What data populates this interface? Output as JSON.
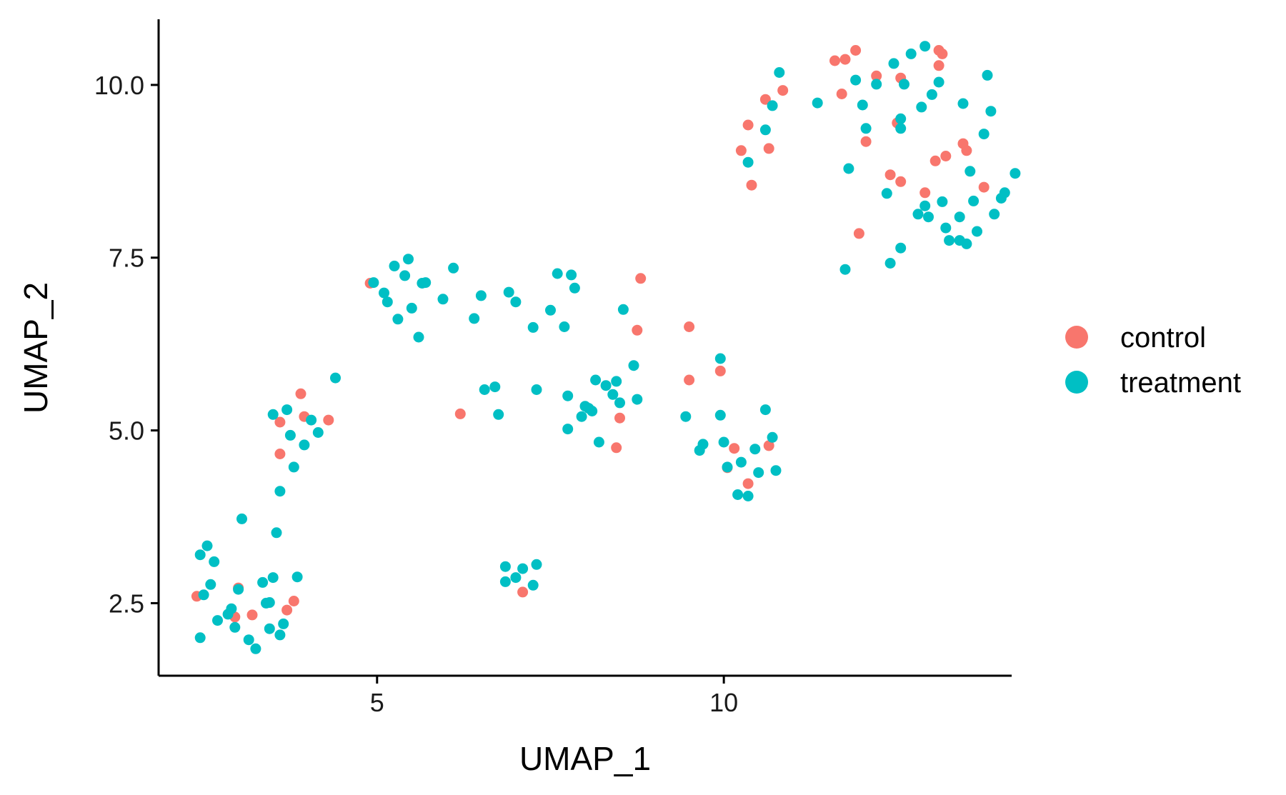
{
  "chart_data": {
    "type": "scatter",
    "title": "",
    "xlabel": "UMAP_1",
    "ylabel": "UMAP_2",
    "xlim": [
      1.85,
      14.15
    ],
    "ylim": [
      1.45,
      10.95
    ],
    "xticks": [
      5,
      10
    ],
    "xtick_labels": [
      "5",
      "10"
    ],
    "yticks": [
      2.5,
      5.0,
      7.5,
      10.0
    ],
    "ytick_labels": [
      "2.5",
      "5.0",
      "7.5",
      "10.0"
    ],
    "grid": false,
    "legend_position": "right",
    "series": [
      {
        "name": "control",
        "color": "#F8766D",
        "points": [
          [
            2.4,
            2.6
          ],
          [
            3.0,
            2.72
          ],
          [
            2.95,
            2.3
          ],
          [
            3.2,
            2.33
          ],
          [
            3.7,
            2.4
          ],
          [
            3.8,
            2.53
          ],
          [
            3.6,
            5.12
          ],
          [
            3.6,
            4.66
          ],
          [
            3.9,
            5.53
          ],
          [
            3.95,
            5.2
          ],
          [
            4.3,
            5.15
          ],
          [
            4.9,
            7.13
          ],
          [
            6.2,
            5.24
          ],
          [
            7.1,
            2.66
          ],
          [
            8.5,
            5.18
          ],
          [
            8.45,
            4.75
          ],
          [
            8.75,
            6.45
          ],
          [
            8.8,
            7.2
          ],
          [
            9.5,
            6.5
          ],
          [
            9.5,
            5.73
          ],
          [
            9.95,
            5.86
          ],
          [
            10.05,
            4.46
          ],
          [
            10.15,
            4.74
          ],
          [
            10.35,
            4.23
          ],
          [
            10.65,
            4.78
          ],
          [
            10.25,
            9.05
          ],
          [
            10.35,
            9.42
          ],
          [
            10.4,
            8.55
          ],
          [
            10.6,
            9.79
          ],
          [
            10.65,
            9.08
          ],
          [
            10.85,
            9.92
          ],
          [
            11.6,
            10.35
          ],
          [
            11.7,
            9.87
          ],
          [
            11.75,
            10.37
          ],
          [
            11.9,
            10.5
          ],
          [
            12.05,
            9.18
          ],
          [
            11.95,
            7.85
          ],
          [
            12.2,
            10.13
          ],
          [
            12.4,
            8.7
          ],
          [
            12.5,
            9.45
          ],
          [
            12.55,
            8.6
          ],
          [
            12.55,
            10.1
          ],
          [
            12.9,
            8.44
          ],
          [
            13.05,
            8.9
          ],
          [
            13.1,
            10.5
          ],
          [
            13.15,
            10.45
          ],
          [
            13.1,
            10.28
          ],
          [
            13.2,
            8.97
          ],
          [
            13.45,
            9.15
          ],
          [
            13.5,
            9.05
          ],
          [
            13.75,
            8.52
          ]
        ]
      },
      {
        "name": "treatment",
        "color": "#00BFC4",
        "points": [
          [
            2.45,
            3.2
          ],
          [
            2.5,
            2.62
          ],
          [
            2.55,
            3.33
          ],
          [
            2.6,
            2.77
          ],
          [
            2.65,
            3.1
          ],
          [
            2.45,
            2.0
          ],
          [
            2.7,
            2.25
          ],
          [
            2.85,
            2.34
          ],
          [
            2.9,
            2.42
          ],
          [
            2.95,
            2.15
          ],
          [
            3.0,
            2.7
          ],
          [
            3.05,
            3.72
          ],
          [
            3.15,
            1.97
          ],
          [
            3.25,
            1.84
          ],
          [
            3.35,
            2.8
          ],
          [
            3.4,
            2.5
          ],
          [
            3.45,
            2.13
          ],
          [
            3.5,
            2.87
          ],
          [
            3.45,
            2.51
          ],
          [
            3.55,
            3.52
          ],
          [
            3.65,
            2.2
          ],
          [
            3.6,
            2.04
          ],
          [
            3.85,
            2.88
          ],
          [
            3.6,
            4.12
          ],
          [
            3.7,
            5.3
          ],
          [
            3.75,
            4.93
          ],
          [
            3.8,
            4.47
          ],
          [
            3.5,
            5.23
          ],
          [
            3.95,
            4.79
          ],
          [
            4.05,
            5.15
          ],
          [
            4.15,
            4.97
          ],
          [
            4.4,
            5.76
          ],
          [
            4.95,
            7.14
          ],
          [
            5.1,
            6.99
          ],
          [
            5.15,
            6.86
          ],
          [
            5.25,
            7.38
          ],
          [
            5.3,
            6.61
          ],
          [
            5.4,
            7.24
          ],
          [
            5.45,
            7.48
          ],
          [
            5.5,
            6.77
          ],
          [
            5.6,
            6.35
          ],
          [
            5.65,
            7.13
          ],
          [
            5.7,
            7.14
          ],
          [
            5.95,
            6.9
          ],
          [
            6.1,
            7.35
          ],
          [
            6.4,
            6.62
          ],
          [
            6.5,
            6.95
          ],
          [
            6.55,
            5.59
          ],
          [
            6.7,
            5.63
          ],
          [
            6.75,
            5.23
          ],
          [
            6.9,
            7.0
          ],
          [
            7.0,
            6.86
          ],
          [
            7.25,
            6.49
          ],
          [
            7.3,
            5.59
          ],
          [
            7.5,
            6.74
          ],
          [
            7.6,
            7.27
          ],
          [
            7.7,
            6.5
          ],
          [
            7.75,
            5.5
          ],
          [
            7.8,
            7.25
          ],
          [
            7.85,
            7.06
          ],
          [
            7.75,
            5.02
          ],
          [
            7.95,
            5.2
          ],
          [
            8.0,
            5.35
          ],
          [
            8.05,
            5.32
          ],
          [
            8.1,
            5.28
          ],
          [
            8.15,
            5.73
          ],
          [
            8.2,
            4.83
          ],
          [
            8.3,
            5.65
          ],
          [
            8.4,
            5.52
          ],
          [
            8.45,
            5.71
          ],
          [
            8.5,
            5.4
          ],
          [
            8.55,
            6.75
          ],
          [
            8.7,
            5.94
          ],
          [
            8.75,
            5.45
          ],
          [
            6.85,
            3.03
          ],
          [
            6.85,
            2.81
          ],
          [
            7.0,
            2.87
          ],
          [
            7.1,
            3.0
          ],
          [
            7.25,
            2.76
          ],
          [
            7.3,
            3.06
          ],
          [
            9.45,
            5.2
          ],
          [
            9.65,
            4.71
          ],
          [
            9.7,
            4.8
          ],
          [
            9.95,
            5.22
          ],
          [
            9.95,
            6.04
          ],
          [
            10.0,
            4.83
          ],
          [
            10.05,
            4.47
          ],
          [
            10.2,
            4.07
          ],
          [
            10.25,
            4.54
          ],
          [
            10.35,
            4.05
          ],
          [
            10.45,
            4.73
          ],
          [
            10.5,
            4.39
          ],
          [
            10.6,
            5.3
          ],
          [
            10.7,
            4.9
          ],
          [
            10.75,
            4.42
          ],
          [
            10.35,
            8.88
          ],
          [
            10.6,
            9.35
          ],
          [
            10.7,
            9.7
          ],
          [
            10.8,
            10.18
          ],
          [
            11.35,
            9.74
          ],
          [
            11.75,
            7.33
          ],
          [
            11.8,
            8.79
          ],
          [
            11.9,
            10.07
          ],
          [
            12.0,
            9.71
          ],
          [
            12.05,
            9.37
          ],
          [
            12.2,
            10.01
          ],
          [
            12.35,
            8.43
          ],
          [
            12.4,
            7.42
          ],
          [
            12.45,
            10.31
          ],
          [
            12.55,
            7.64
          ],
          [
            12.55,
            9.51
          ],
          [
            12.55,
            9.37
          ],
          [
            12.6,
            10.01
          ],
          [
            12.7,
            10.45
          ],
          [
            12.8,
            8.13
          ],
          [
            12.85,
            9.68
          ],
          [
            12.9,
            8.25
          ],
          [
            12.9,
            10.56
          ],
          [
            12.95,
            8.09
          ],
          [
            13.0,
            9.86
          ],
          [
            13.1,
            10.04
          ],
          [
            13.15,
            8.31
          ],
          [
            13.2,
            7.93
          ],
          [
            13.25,
            7.75
          ],
          [
            13.4,
            7.75
          ],
          [
            13.4,
            8.09
          ],
          [
            13.45,
            9.73
          ],
          [
            13.5,
            7.7
          ],
          [
            13.55,
            8.75
          ],
          [
            13.6,
            8.32
          ],
          [
            13.65,
            7.88
          ],
          [
            13.75,
            9.29
          ],
          [
            13.8,
            10.14
          ],
          [
            13.85,
            9.62
          ],
          [
            13.9,
            8.13
          ],
          [
            14.0,
            8.36
          ],
          [
            14.05,
            8.44
          ],
          [
            14.2,
            8.72
          ]
        ]
      }
    ]
  }
}
